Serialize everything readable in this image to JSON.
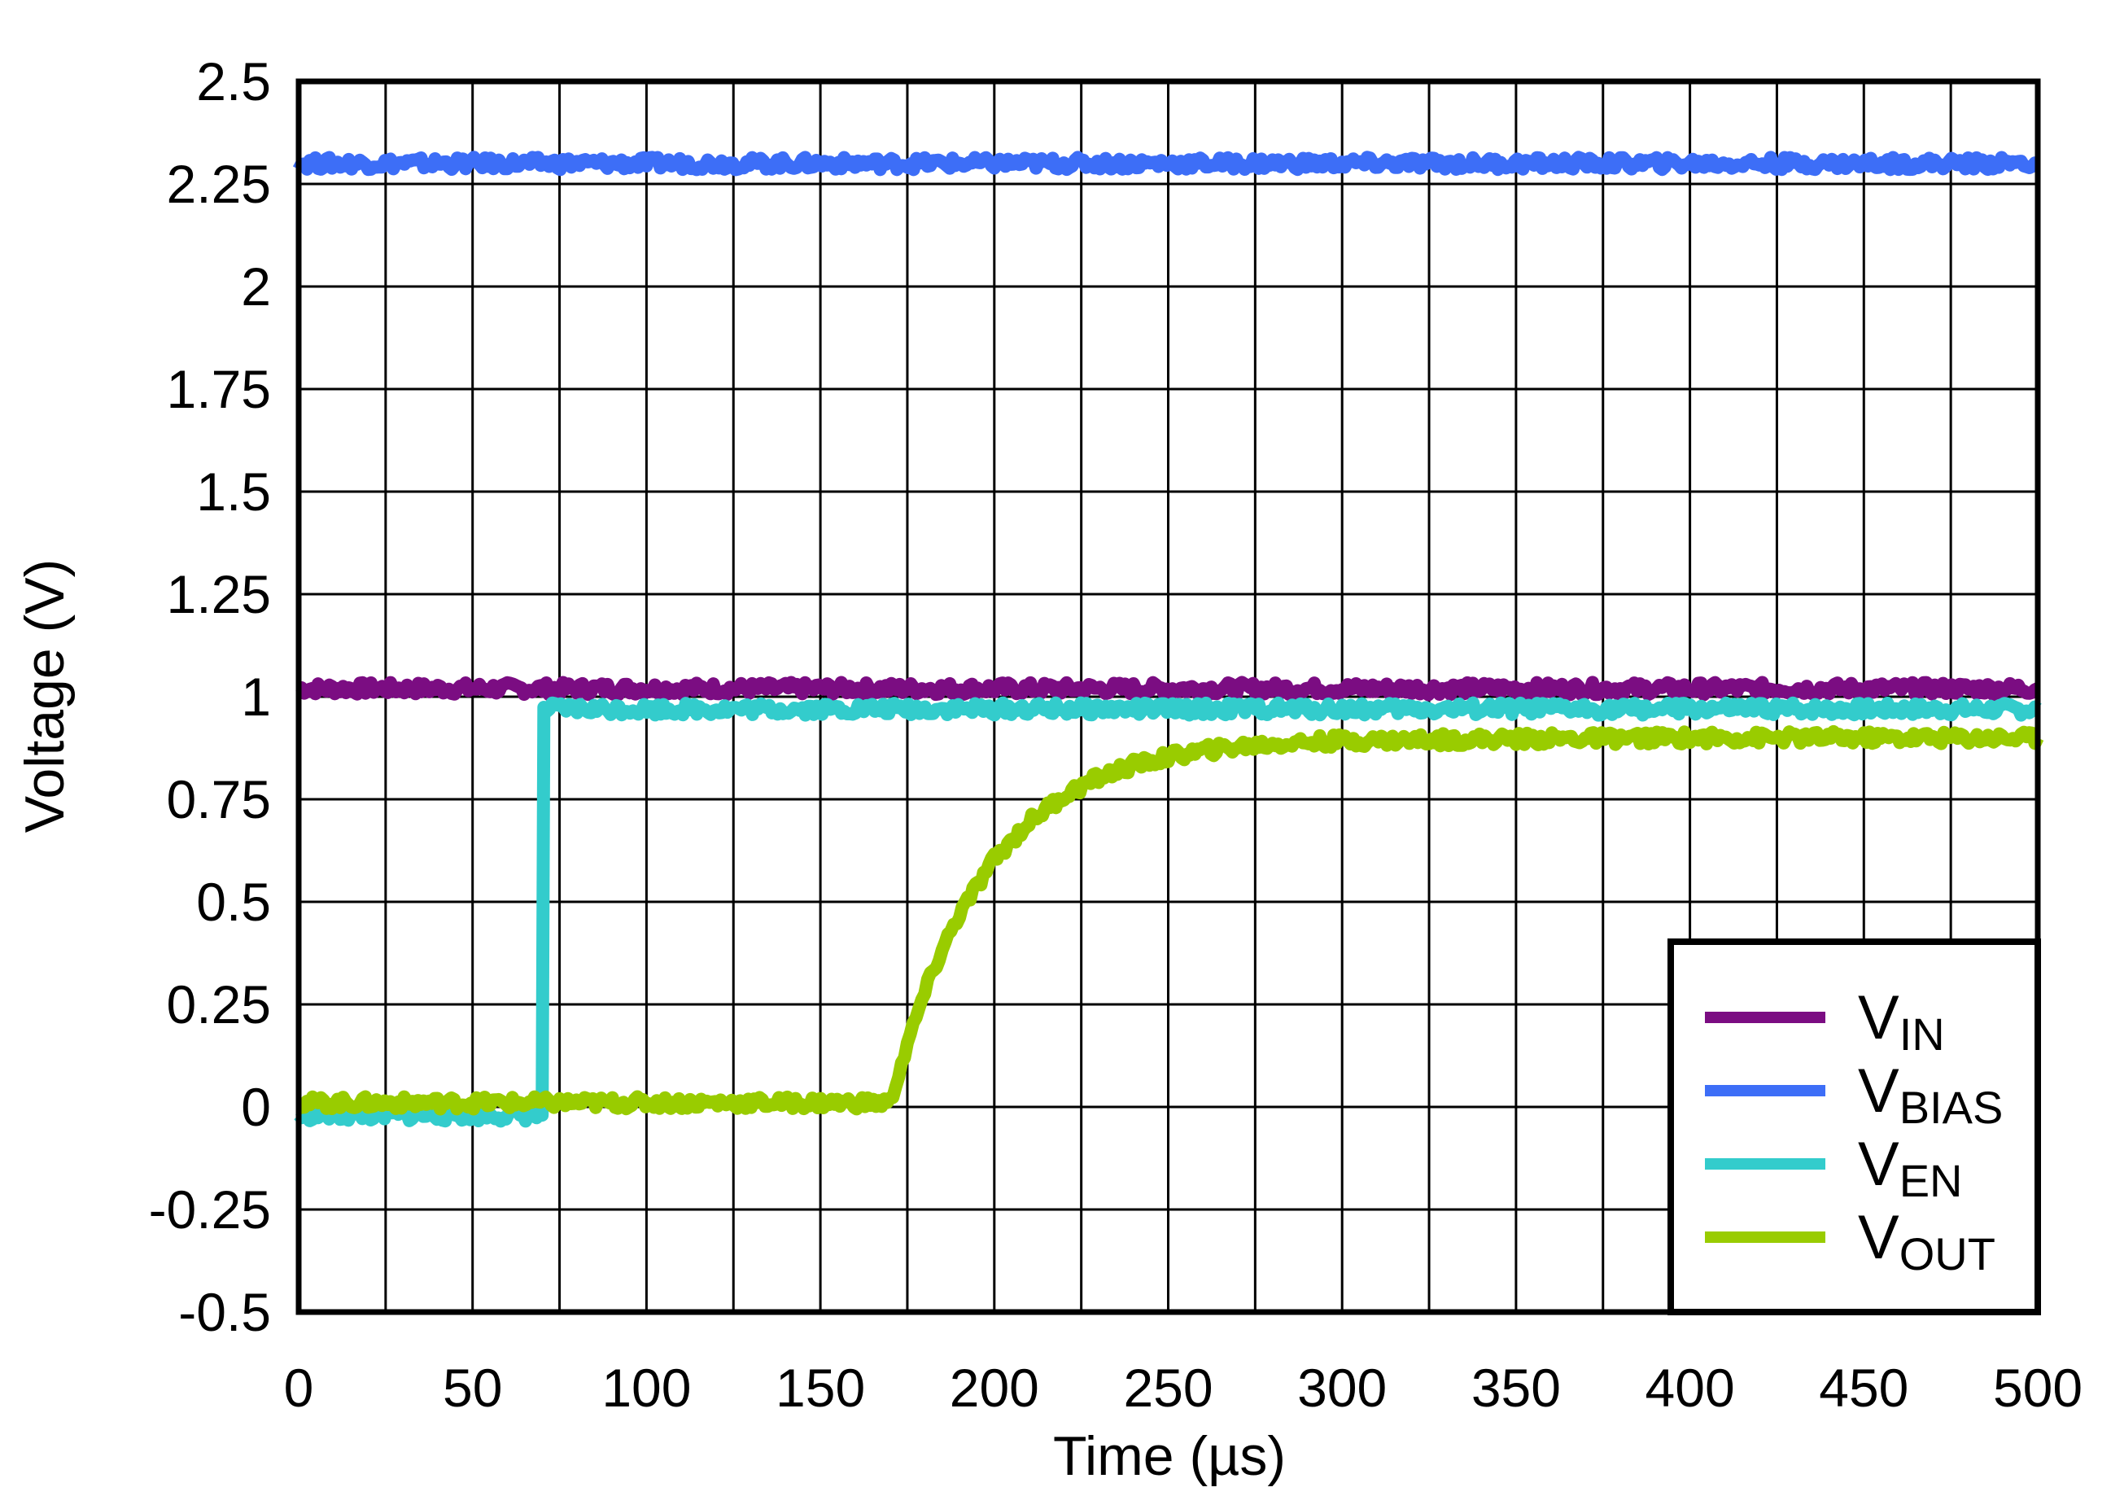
{
  "chart_data": {
    "type": "line",
    "title": "",
    "xlabel": "Time (µs)",
    "ylabel": "Voltage (V)",
    "xlim": [
      0,
      500
    ],
    "ylim": [
      -0.5,
      2.5
    ],
    "x_ticks": [
      0,
      50,
      100,
      150,
      200,
      250,
      300,
      350,
      400,
      450,
      500
    ],
    "x_tick_labels": [
      "0",
      "50",
      "100",
      "150",
      "200",
      "250",
      "300",
      "350",
      "400",
      "450",
      "500"
    ],
    "y_ticks": [
      -0.5,
      -0.25,
      0,
      0.25,
      0.5,
      0.75,
      1,
      1.25,
      1.5,
      1.75,
      2,
      2.25,
      2.5
    ],
    "y_tick_labels": [
      "-0.5",
      "-0.25",
      "0",
      "0.25",
      "0.5",
      "0.75",
      "1",
      "1.25",
      "1.5",
      "1.75",
      "2",
      "2.25",
      "2.5"
    ],
    "x_grid_step": 25,
    "y_grid_step": 0.25,
    "grid": true,
    "legend_position": "bottom-right",
    "series": [
      {
        "name": "VIN",
        "label_main": "V",
        "label_sub": "IN",
        "color": "#7B0D82",
        "x": [
          0,
          500
        ],
        "y": [
          1.02,
          1.02
        ]
      },
      {
        "name": "VBIAS",
        "label_main": "V",
        "label_sub": "BIAS",
        "color": "#3D6EF7",
        "x": [
          0,
          500
        ],
        "y": [
          2.3,
          2.3
        ]
      },
      {
        "name": "VEN",
        "label_main": "V",
        "label_sub": "EN",
        "color": "#33CCCC",
        "x": [
          0,
          70,
          70.5,
          500
        ],
        "y": [
          -0.02,
          -0.02,
          0.97,
          0.97
        ]
      },
      {
        "name": "VOUT",
        "label_main": "V",
        "label_sub": "OUT",
        "color": "#99CC00",
        "x": [
          0,
          170,
          175,
          180,
          185,
          190,
          200,
          210,
          220,
          230,
          240,
          250,
          260,
          270,
          280,
          300,
          325,
          350,
          400,
          450,
          500
        ],
        "y": [
          0.01,
          0.01,
          0.152,
          0.279,
          0.384,
          0.471,
          0.604,
          0.695,
          0.759,
          0.803,
          0.833,
          0.853,
          0.868,
          0.878,
          0.885,
          0.893,
          0.895,
          0.897,
          0.9,
          0.9,
          0.9
        ]
      }
    ]
  }
}
